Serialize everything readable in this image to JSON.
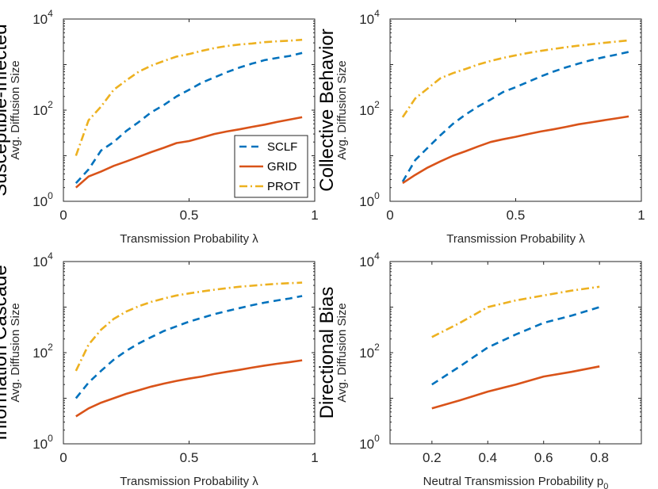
{
  "chart_data": [
    {
      "type": "line",
      "row_label": "Susceptible-Infected",
      "xlabel": "Transmission Probability λ",
      "ylabel": "Avg. Diffusion Size",
      "xlim": [
        0,
        1
      ],
      "x_ticks": [
        0,
        0.5,
        1
      ],
      "x_tick_labels": [
        "0",
        "0.5",
        "1"
      ],
      "yscale": "log",
      "ylim": [
        1,
        10000
      ],
      "y_ticks": [
        1,
        100,
        10000
      ],
      "y_tick_labels": [
        {
          "base": "10",
          "exp": "0"
        },
        {
          "base": "10",
          "exp": "2"
        },
        {
          "base": "10",
          "exp": "4"
        }
      ],
      "legend": {
        "position": "lower-right",
        "entries": [
          "SCLF",
          "GRID",
          "PROT"
        ]
      },
      "series": [
        {
          "name": "SCLF",
          "color": "#0072BD",
          "style": "dashed",
          "x": [
            0.05,
            0.1,
            0.15,
            0.2,
            0.25,
            0.3,
            0.35,
            0.4,
            0.45,
            0.5,
            0.55,
            0.6,
            0.65,
            0.7,
            0.75,
            0.8,
            0.85,
            0.9,
            0.95
          ],
          "y": [
            2.5,
            5,
            13,
            20,
            35,
            55,
            90,
            130,
            200,
            280,
            400,
            520,
            680,
            860,
            1050,
            1250,
            1400,
            1550,
            1800
          ]
        },
        {
          "name": "GRID",
          "color": "#D95319",
          "style": "solid",
          "x": [
            0.05,
            0.1,
            0.15,
            0.2,
            0.25,
            0.3,
            0.35,
            0.4,
            0.45,
            0.5,
            0.55,
            0.6,
            0.65,
            0.7,
            0.75,
            0.8,
            0.85,
            0.9,
            0.95
          ],
          "y": [
            2,
            3.5,
            4.5,
            6,
            7.5,
            9.5,
            12,
            15,
            19,
            21,
            25,
            30,
            34,
            38,
            43,
            48,
            55,
            62,
            70
          ]
        },
        {
          "name": "PROT",
          "color": "#EDB120",
          "style": "dashdot",
          "x": [
            0.05,
            0.1,
            0.15,
            0.2,
            0.25,
            0.3,
            0.35,
            0.4,
            0.45,
            0.5,
            0.55,
            0.6,
            0.65,
            0.7,
            0.75,
            0.8,
            0.85,
            0.9,
            0.95
          ],
          "y": [
            10,
            60,
            120,
            280,
            450,
            700,
            950,
            1200,
            1500,
            1700,
            2000,
            2300,
            2550,
            2750,
            2900,
            3100,
            3250,
            3350,
            3500
          ]
        }
      ]
    },
    {
      "type": "line",
      "row_label": "Collective Behavior",
      "xlabel": "Transmission Probability λ",
      "ylabel": "Avg. Diffusion Size",
      "xlim": [
        0,
        1
      ],
      "x_ticks": [
        0,
        0.5,
        1
      ],
      "x_tick_labels": [
        "0",
        "0.5",
        "1"
      ],
      "yscale": "log",
      "ylim": [
        1,
        10000
      ],
      "y_ticks": [
        1,
        100,
        10000
      ],
      "y_tick_labels": [
        {
          "base": "10",
          "exp": "0"
        },
        {
          "base": "10",
          "exp": "2"
        },
        {
          "base": "10",
          "exp": "4"
        }
      ],
      "series": [
        {
          "name": "SCLF",
          "color": "#0072BD",
          "style": "dashed",
          "x": [
            0.05,
            0.1,
            0.15,
            0.2,
            0.25,
            0.3,
            0.35,
            0.4,
            0.45,
            0.5,
            0.55,
            0.6,
            0.65,
            0.7,
            0.75,
            0.8,
            0.85,
            0.9,
            0.95
          ],
          "y": [
            2.7,
            8,
            15,
            28,
            50,
            80,
            120,
            170,
            250,
            320,
            420,
            550,
            700,
            870,
            1050,
            1250,
            1450,
            1650,
            1900
          ]
        },
        {
          "name": "GRID",
          "color": "#D95319",
          "style": "solid",
          "x": [
            0.05,
            0.1,
            0.15,
            0.2,
            0.25,
            0.3,
            0.35,
            0.4,
            0.45,
            0.5,
            0.55,
            0.6,
            0.65,
            0.7,
            0.75,
            0.8,
            0.85,
            0.9,
            0.95
          ],
          "y": [
            2.5,
            3.8,
            5.5,
            7.5,
            10,
            12.5,
            16,
            20,
            23,
            26,
            30,
            34,
            38,
            43,
            49,
            54,
            60,
            66,
            73
          ]
        },
        {
          "name": "PROT",
          "color": "#EDB120",
          "style": "dashdot",
          "x": [
            0.05,
            0.1,
            0.15,
            0.2,
            0.25,
            0.3,
            0.35,
            0.4,
            0.45,
            0.5,
            0.55,
            0.6,
            0.65,
            0.7,
            0.75,
            0.8,
            0.85,
            0.9,
            0.95
          ],
          "y": [
            70,
            180,
            300,
            500,
            650,
            800,
            1000,
            1200,
            1400,
            1600,
            1800,
            2000,
            2200,
            2400,
            2600,
            2800,
            3000,
            3200,
            3400
          ]
        }
      ]
    },
    {
      "type": "line",
      "row_label": "Information Cascade",
      "xlabel": "Transmission Probability λ",
      "ylabel": "Avg. Diffusion Size",
      "xlim": [
        0,
        1
      ],
      "x_ticks": [
        0,
        0.5,
        1
      ],
      "x_tick_labels": [
        "0",
        "0.5",
        "1"
      ],
      "yscale": "log",
      "ylim": [
        1,
        10000
      ],
      "y_ticks": [
        1,
        100,
        10000
      ],
      "y_tick_labels": [
        {
          "base": "10",
          "exp": "0"
        },
        {
          "base": "10",
          "exp": "2"
        },
        {
          "base": "10",
          "exp": "4"
        }
      ],
      "series": [
        {
          "name": "SCLF",
          "color": "#0072BD",
          "style": "dashed",
          "x": [
            0.05,
            0.1,
            0.15,
            0.2,
            0.25,
            0.3,
            0.35,
            0.4,
            0.45,
            0.5,
            0.55,
            0.6,
            0.65,
            0.7,
            0.75,
            0.8,
            0.85,
            0.9,
            0.95
          ],
          "y": [
            10,
            22,
            40,
            70,
            110,
            160,
            220,
            300,
            380,
            480,
            580,
            700,
            820,
            950,
            1100,
            1250,
            1400,
            1550,
            1750
          ]
        },
        {
          "name": "GRID",
          "color": "#D95319",
          "style": "solid",
          "x": [
            0.05,
            0.1,
            0.15,
            0.2,
            0.25,
            0.3,
            0.35,
            0.4,
            0.45,
            0.5,
            0.55,
            0.6,
            0.65,
            0.7,
            0.75,
            0.8,
            0.85,
            0.9,
            0.95
          ],
          "y": [
            4,
            6,
            8,
            10,
            12.5,
            15,
            18,
            21,
            24,
            27,
            30,
            34,
            38,
            42,
            47,
            52,
            57,
            62,
            68
          ]
        },
        {
          "name": "PROT",
          "color": "#EDB120",
          "style": "dashdot",
          "x": [
            0.05,
            0.1,
            0.15,
            0.2,
            0.25,
            0.3,
            0.35,
            0.4,
            0.45,
            0.5,
            0.55,
            0.6,
            0.65,
            0.7,
            0.75,
            0.8,
            0.85,
            0.9,
            0.95
          ],
          "y": [
            40,
            150,
            320,
            550,
            800,
            1050,
            1300,
            1550,
            1800,
            2000,
            2200,
            2400,
            2600,
            2800,
            2950,
            3100,
            3250,
            3350,
            3450
          ]
        }
      ]
    },
    {
      "type": "line",
      "row_label": "Directional Bias",
      "xlabel": "Neutral Transmission Probability p",
      "xlabel_subscript": "0",
      "ylabel": "Avg. Diffusion Size",
      "xlim": [
        0.05,
        0.95
      ],
      "x_ticks": [
        0.2,
        0.4,
        0.6,
        0.8
      ],
      "x_tick_labels": [
        "0.2",
        "0.4",
        "0.6",
        "0.8"
      ],
      "yscale": "log",
      "ylim": [
        1,
        10000
      ],
      "y_ticks": [
        1,
        100,
        10000
      ],
      "y_tick_labels": [
        {
          "base": "10",
          "exp": "0"
        },
        {
          "base": "10",
          "exp": "2"
        },
        {
          "base": "10",
          "exp": "4"
        }
      ],
      "series": [
        {
          "name": "SCLF",
          "color": "#0072BD",
          "style": "dashed",
          "x": [
            0.2,
            0.3,
            0.4,
            0.5,
            0.6,
            0.7,
            0.8
          ],
          "y": [
            20,
            50,
            130,
            250,
            450,
            650,
            1000
          ]
        },
        {
          "name": "GRID",
          "color": "#D95319",
          "style": "solid",
          "x": [
            0.2,
            0.3,
            0.4,
            0.5,
            0.6,
            0.7,
            0.8
          ],
          "y": [
            6,
            9,
            14,
            20,
            30,
            38,
            50
          ]
        },
        {
          "name": "PROT",
          "color": "#EDB120",
          "style": "dashdot",
          "x": [
            0.2,
            0.3,
            0.4,
            0.5,
            0.6,
            0.7,
            0.8
          ],
          "y": [
            220,
            450,
            1000,
            1400,
            1800,
            2300,
            2800
          ]
        }
      ]
    }
  ]
}
